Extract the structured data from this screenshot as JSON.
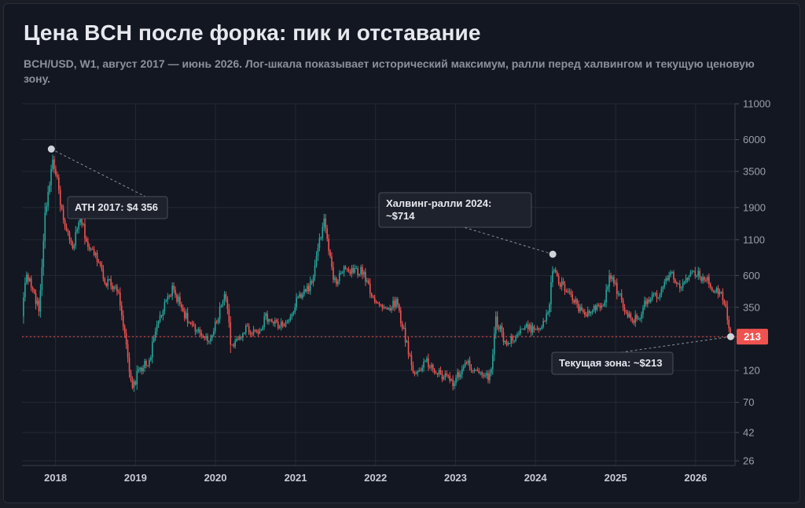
{
  "header": {
    "title": "Цена BCH после форка: пик и отставание",
    "subtitle": "BCH/USD, W1, август 2017 — июнь 2026. Лог-шкала показывает исторический максимум, ралли перед халвингом и текущую ценовую зону."
  },
  "colors": {
    "background": "#131722",
    "grid": "#242935",
    "up": "#26a69a",
    "down": "#ef5350",
    "price_line": "#ef5350",
    "marker": "#cfd3da"
  },
  "chart_data": {
    "type": "candlestick",
    "title": "Цена BCH после форка: пик и отставание",
    "symbol": "BCH/USD",
    "timeframe": "W1",
    "y_scale": "log",
    "y_ticks": [
      26,
      42,
      70,
      120,
      213,
      350,
      600,
      1100,
      1900,
      3500,
      6000,
      11000
    ],
    "x_ticks": [
      "2018",
      "2019",
      "2020",
      "2021",
      "2022",
      "2023",
      "2024",
      "2025",
      "2026"
    ],
    "xlim": [
      "2017-08-01",
      "2026-06-30"
    ],
    "ylim": [
      24,
      11000
    ],
    "grid": true,
    "current_price": 213,
    "current_price_label": "213",
    "anchors": [
      [
        "2017-08-01",
        300
      ],
      [
        "2017-08-20",
        650
      ],
      [
        "2017-09-15",
        480
      ],
      [
        "2017-10-20",
        330
      ],
      [
        "2017-11-12",
        1600
      ],
      [
        "2017-12-20",
        4356
      ],
      [
        "2018-01-15",
        2600
      ],
      [
        "2018-02-10",
        1350
      ],
      [
        "2018-03-20",
        950
      ],
      [
        "2018-04-25",
        1600
      ],
      [
        "2018-06-01",
        950
      ],
      [
        "2018-07-15",
        800
      ],
      [
        "2018-08-15",
        550
      ],
      [
        "2018-10-15",
        480
      ],
      [
        "2018-11-20",
        175
      ],
      [
        "2018-12-15",
        85
      ],
      [
        "2019-01-20",
        125
      ],
      [
        "2019-03-01",
        135
      ],
      [
        "2019-04-15",
        280
      ],
      [
        "2019-06-20",
        480
      ],
      [
        "2019-08-15",
        310
      ],
      [
        "2019-10-01",
        230
      ],
      [
        "2019-12-15",
        205
      ],
      [
        "2020-02-14",
        470
      ],
      [
        "2020-03-15",
        170
      ],
      [
        "2020-05-15",
        245
      ],
      [
        "2020-07-10",
        230
      ],
      [
        "2020-08-20",
        295
      ],
      [
        "2020-10-15",
        255
      ],
      [
        "2020-12-01",
        270
      ],
      [
        "2021-01-15",
        420
      ],
      [
        "2021-03-15",
        520
      ],
      [
        "2021-05-10",
        1550
      ],
      [
        "2021-06-25",
        520
      ],
      [
        "2021-08-15",
        680
      ],
      [
        "2021-09-10",
        640
      ],
      [
        "2021-11-05",
        640
      ],
      [
        "2021-12-20",
        420
      ],
      [
        "2022-02-15",
        330
      ],
      [
        "2022-04-05",
        390
      ],
      [
        "2022-05-20",
        200
      ],
      [
        "2022-06-25",
        110
      ],
      [
        "2022-08-15",
        140
      ],
      [
        "2022-10-10",
        115
      ],
      [
        "2022-12-25",
        98
      ],
      [
        "2023-02-15",
        135
      ],
      [
        "2023-04-20",
        120
      ],
      [
        "2023-06-10",
        105
      ],
      [
        "2023-07-01",
        290
      ],
      [
        "2023-08-20",
        190
      ],
      [
        "2023-10-01",
        215
      ],
      [
        "2023-11-15",
        245
      ],
      [
        "2024-01-20",
        250
      ],
      [
        "2024-03-01",
        310
      ],
      [
        "2024-03-20",
        714
      ],
      [
        "2024-04-15",
        540
      ],
      [
        "2024-06-10",
        430
      ],
      [
        "2024-08-05",
        305
      ],
      [
        "2024-09-20",
        330
      ],
      [
        "2024-11-10",
        360
      ],
      [
        "2024-12-05",
        620
      ],
      [
        "2025-01-15",
        440
      ],
      [
        "2025-02-20",
        310
      ],
      [
        "2025-04-10",
        280
      ],
      [
        "2025-05-20",
        400
      ],
      [
        "2025-07-15",
        420
      ],
      [
        "2025-09-05",
        610
      ],
      [
        "2025-11-01",
        500
      ],
      [
        "2025-12-20",
        620
      ],
      [
        "2026-02-10",
        580
      ],
      [
        "2026-03-25",
        470
      ],
      [
        "2026-04-25",
        470
      ],
      [
        "2026-05-20",
        350
      ],
      [
        "2026-06-10",
        213
      ]
    ],
    "annotations": [
      {
        "label": "ATH 2017: $4 356",
        "date": "2017-12-20",
        "value": 4356
      },
      {
        "label": "Халвинг-ралли 2024:",
        "label2": "~$714",
        "date": "2024-03-20",
        "value": 714
      },
      {
        "label": "Текущая зона: ~$213",
        "date": "2026-06-10",
        "value": 213
      }
    ]
  }
}
